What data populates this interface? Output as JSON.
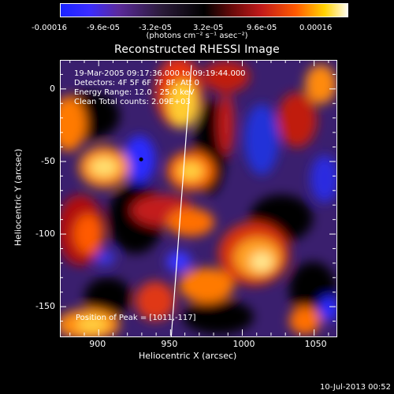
{
  "colorbar": {
    "ticks": [
      "-0.00016",
      "-9.6e-05",
      "-3.2e-05",
      "3.2e-05",
      "9.6e-05",
      "0.00016"
    ],
    "units": "(photons cm⁻² s⁻¹ asec⁻²)"
  },
  "plot": {
    "title": "Reconstructed RHESSI Image",
    "info_lines": [
      "19-Mar-2005 09:17:36.000 to 09:19:44.000",
      "Detectors: 4F 5F 6F 7F 8F, Att 0",
      "Energy Range: 12.0 - 25.0 keV",
      "Clean    Total counts: 2.09E+03"
    ],
    "peak_label": "Position of Peak = [1011,-117]",
    "x_axis": {
      "label": "Heliocentric X (arcsec)",
      "ticks": [
        "900",
        "950",
        "1000",
        "1050"
      ],
      "range": [
        873,
        1065
      ]
    },
    "y_axis": {
      "label": "Heliocentric Y (arcsec)",
      "ticks": [
        "0",
        "-50",
        "-100",
        "-150"
      ],
      "range": [
        -170,
        20
      ]
    },
    "limb_line": {
      "x1": 964,
      "y1": 17,
      "x2": 950,
      "y2": -170
    },
    "marker": {
      "x": 929,
      "y": -48
    }
  },
  "footer": {
    "timestamp": "10-Jul-2013 00:52"
  },
  "colors": {
    "background": "#000000",
    "foreground": "#ffffff"
  }
}
